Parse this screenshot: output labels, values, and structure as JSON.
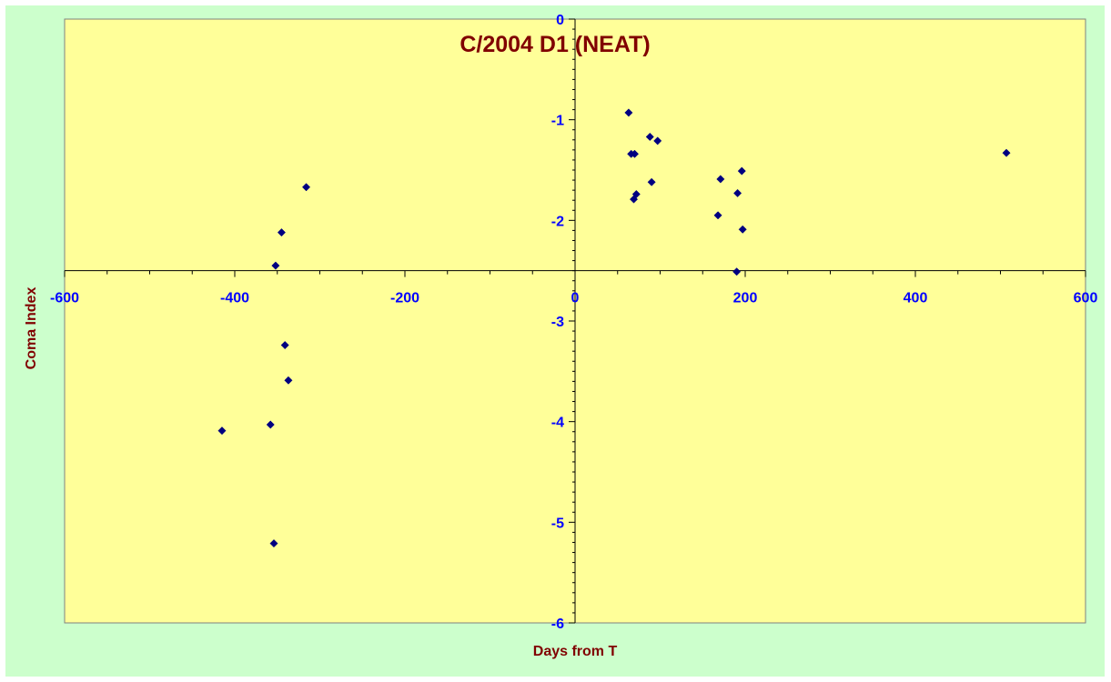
{
  "colors": {
    "chart_area_bg": "#ccffcc",
    "plot_area_bg": "#ffff99",
    "title_color": "#800000",
    "tick_label_color": "#0000ff",
    "marker_color": "#000080"
  },
  "chart_data": {
    "type": "scatter",
    "title": "C/2004 D1 (NEAT)",
    "xlabel": "Days from T",
    "ylabel": "Coma Index",
    "xlim": [
      -600,
      600
    ],
    "ylim": [
      -6,
      0
    ],
    "x_ticks": [
      -600,
      -400,
      -200,
      0,
      200,
      400,
      600
    ],
    "y_ticks": [
      0,
      -1,
      -2,
      -3,
      -4,
      -5,
      -6
    ],
    "x_tick_labels": [
      "-600",
      "-400",
      "-200",
      "0",
      "200",
      "400",
      "600"
    ],
    "y_tick_labels": [
      "0",
      "-1",
      "-2",
      "-3",
      "-4",
      "-5",
      "-6"
    ],
    "axis_crossing": {
      "x_axis_at_y": -2.5,
      "y_axis_at_x": 0
    },
    "grid": false,
    "legend": "none",
    "marker": "diamond",
    "series": [
      {
        "points": [
          {
            "x": -415,
            "y": -4.09
          },
          {
            "x": -358,
            "y": -4.03
          },
          {
            "x": -354,
            "y": -5.21
          },
          {
            "x": -352,
            "y": -2.45
          },
          {
            "x": -345,
            "y": -2.12
          },
          {
            "x": -341,
            "y": -3.24
          },
          {
            "x": -337,
            "y": -3.59
          },
          {
            "x": -316,
            "y": -1.67
          },
          {
            "x": 63,
            "y": -0.93
          },
          {
            "x": 66,
            "y": -1.34
          },
          {
            "x": 70,
            "y": -1.34
          },
          {
            "x": 69,
            "y": -1.79
          },
          {
            "x": 72,
            "y": -1.74
          },
          {
            "x": 88,
            "y": -1.17
          },
          {
            "x": 90,
            "y": -1.62
          },
          {
            "x": 97,
            "y": -1.21
          },
          {
            "x": 168,
            "y": -1.95
          },
          {
            "x": 171,
            "y": -1.59
          },
          {
            "x": 191,
            "y": -1.73
          },
          {
            "x": 190,
            "y": -2.51
          },
          {
            "x": 196,
            "y": -1.51
          },
          {
            "x": 197,
            "y": -2.09
          },
          {
            "x": 507,
            "y": -1.33
          }
        ]
      }
    ]
  }
}
